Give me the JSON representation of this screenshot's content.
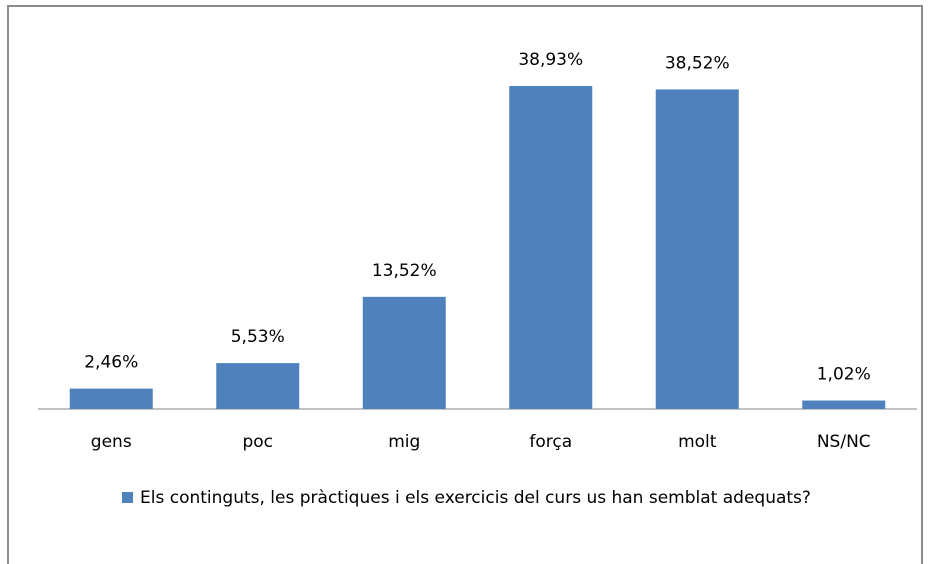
{
  "chart_data": {
    "type": "bar",
    "categories": [
      "gens",
      "poc",
      "mig",
      "força",
      "molt",
      "NS/NC"
    ],
    "series": [
      {
        "name": "Els continguts, les pràctiques i els exercicis del curs us han semblat adequats?",
        "color": "#4f81bd",
        "values": [
          2.46,
          5.53,
          13.52,
          38.93,
          38.52,
          1.02
        ],
        "value_labels": [
          "2,46%",
          "5,53%",
          "13,52%",
          "38,93%",
          "38,52%",
          "1,02%"
        ]
      }
    ]
  }
}
